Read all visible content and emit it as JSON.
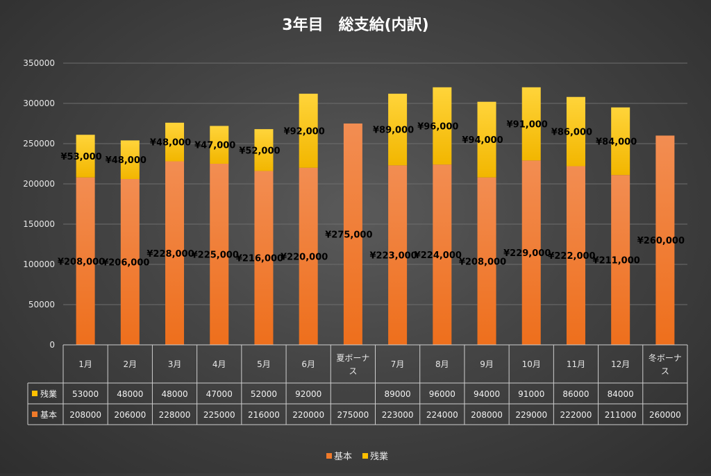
{
  "chart_data": {
    "type": "bar",
    "stacked": true,
    "title": "3年目　総支給(内訳)",
    "categories": [
      [
        "1月"
      ],
      [
        "2月"
      ],
      [
        "3月"
      ],
      [
        "4月"
      ],
      [
        "5月"
      ],
      [
        "6月"
      ],
      [
        "夏ボーナ",
        "ス"
      ],
      [
        "7月"
      ],
      [
        "8月"
      ],
      [
        "9月"
      ],
      [
        "10月"
      ],
      [
        "11月"
      ],
      [
        "12月"
      ],
      [
        "冬ボーナ",
        "ス"
      ]
    ],
    "series": [
      {
        "name": "基本",
        "color": "#f07a2a",
        "values": [
          208000,
          206000,
          228000,
          225000,
          216000,
          220000,
          275000,
          223000,
          224000,
          208000,
          229000,
          222000,
          211000,
          260000
        ],
        "labels": [
          "¥208,000",
          "¥206,000",
          "¥228,000",
          "¥225,000",
          "¥216,000",
          "¥220,000",
          "¥275,000",
          "¥223,000",
          "¥224,000",
          "¥208,000",
          "¥229,000",
          "¥222,000",
          "¥211,000",
          "¥260,000"
        ],
        "table_values": [
          "208000",
          "206000",
          "228000",
          "225000",
          "216000",
          "220000",
          "275000",
          "223000",
          "224000",
          "208000",
          "229000",
          "222000",
          "211000",
          "260000"
        ]
      },
      {
        "name": "残業",
        "color": "#ffc000",
        "values": [
          53000,
          48000,
          48000,
          47000,
          52000,
          92000,
          null,
          89000,
          96000,
          94000,
          91000,
          86000,
          84000,
          null
        ],
        "labels": [
          "¥53,000",
          "¥48,000",
          "¥48,000",
          "¥47,000",
          "¥52,000",
          "¥92,000",
          "",
          "¥89,000",
          "¥96,000",
          "¥94,000",
          "¥91,000",
          "¥86,000",
          "¥84,000",
          ""
        ],
        "table_values": [
          "53000",
          "48000",
          "48000",
          "47000",
          "52000",
          "92000",
          "",
          "89000",
          "96000",
          "94000",
          "91000",
          "86000",
          "84000",
          ""
        ]
      }
    ],
    "table_row_order": [
      "残業",
      "基本"
    ],
    "ylim": [
      0,
      350000
    ],
    "yticks": [
      "0",
      "50000",
      "100000",
      "150000",
      "200000",
      "250000",
      "300000",
      "350000"
    ],
    "legend": {
      "position": "bottom",
      "entries": [
        "基本",
        "残業"
      ]
    },
    "grid": true
  }
}
